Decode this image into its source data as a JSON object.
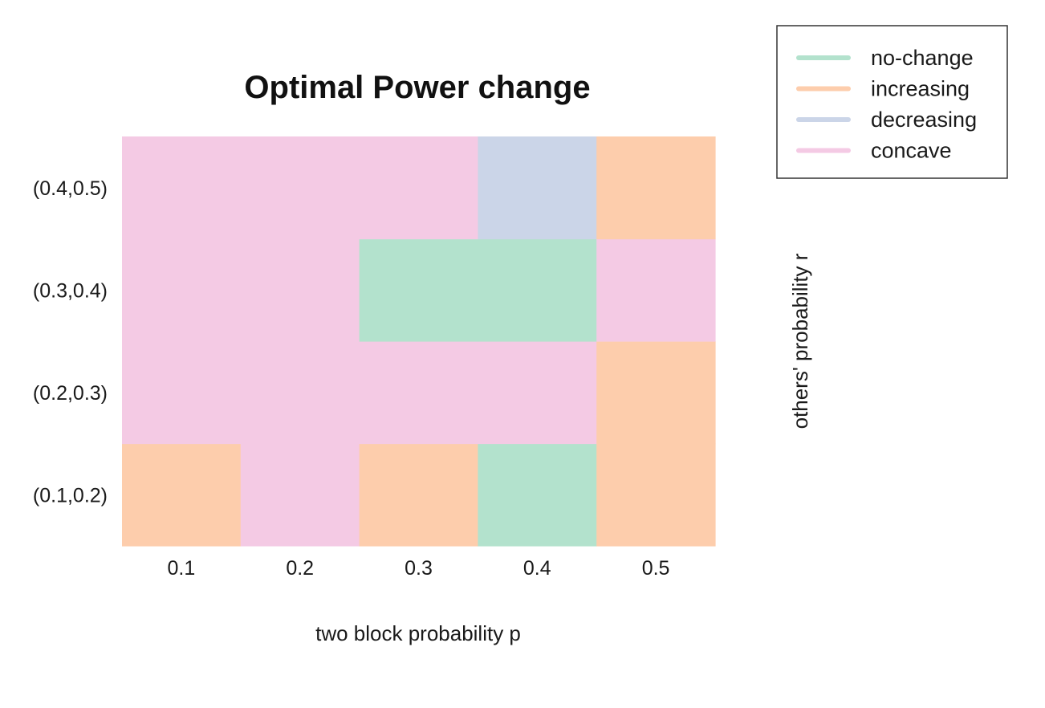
{
  "chart_data": {
    "type": "heatmap",
    "title": "Optimal Power change",
    "xlabel": "two block probability p",
    "ylabel": "others' probability r",
    "x_categories": [
      "0.1",
      "0.2",
      "0.3",
      "0.4",
      "0.5"
    ],
    "y_categories": [
      "(0.1,0.2)",
      "(0.2,0.3)",
      "(0.3,0.4)",
      "(0.4,0.5)"
    ],
    "classes": [
      {
        "name": "no-change",
        "color": "#b3e2cd"
      },
      {
        "name": "increasing",
        "color": "#fdcdac"
      },
      {
        "name": "decreasing",
        "color": "#cbd5e8"
      },
      {
        "name": "concave",
        "color": "#f4cae4"
      }
    ],
    "cells": [
      [
        "increasing",
        "concave",
        "increasing",
        "no-change",
        "increasing"
      ],
      [
        "concave",
        "concave",
        "concave",
        "concave",
        "increasing"
      ],
      [
        "concave",
        "concave",
        "no-change",
        "no-change",
        "concave"
      ],
      [
        "concave",
        "concave",
        "concave",
        "decreasing",
        "increasing"
      ]
    ],
    "legend_position": "top-right",
    "grid": false
  }
}
